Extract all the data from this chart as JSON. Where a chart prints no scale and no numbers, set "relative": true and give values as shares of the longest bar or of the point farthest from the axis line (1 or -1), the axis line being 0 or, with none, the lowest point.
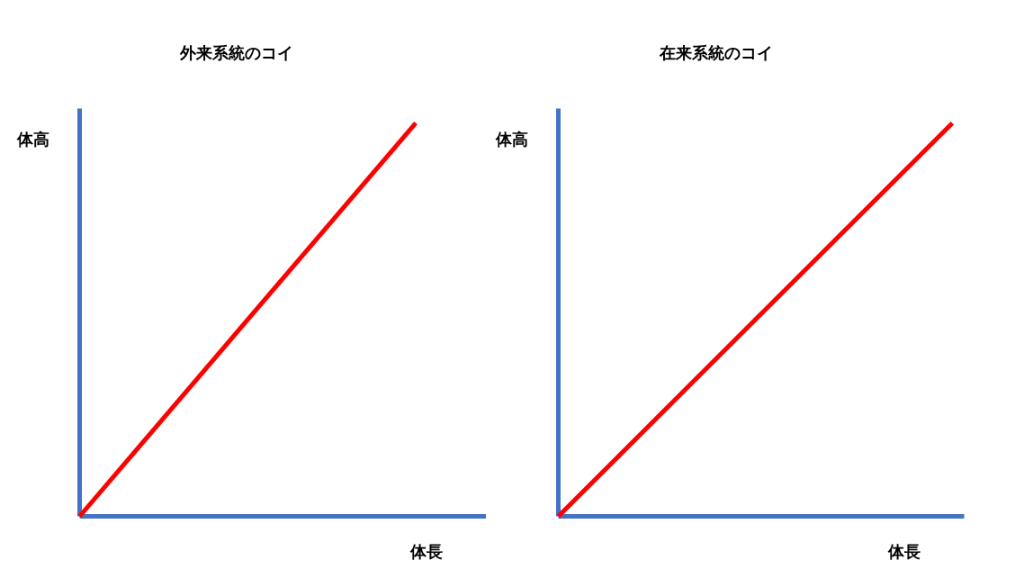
{
  "chart_data": [
    {
      "type": "line",
      "title": "外来系統のコイ",
      "xlabel": "体長",
      "ylabel": "体高",
      "relative": true,
      "categories": [
        null,
        null
      ],
      "series": [
        {
          "color": "#ff0000",
          "values": [
            0,
            1
          ]
        }
      ]
    },
    {
      "type": "line",
      "title": "在来系統のコイ",
      "xlabel": "体長",
      "ylabel": "体高",
      "relative": true,
      "categories": [
        null,
        null
      ],
      "series": [
        {
          "color": "#ff0000",
          "values": [
            0,
            1
          ]
        }
      ]
    }
  ]
}
